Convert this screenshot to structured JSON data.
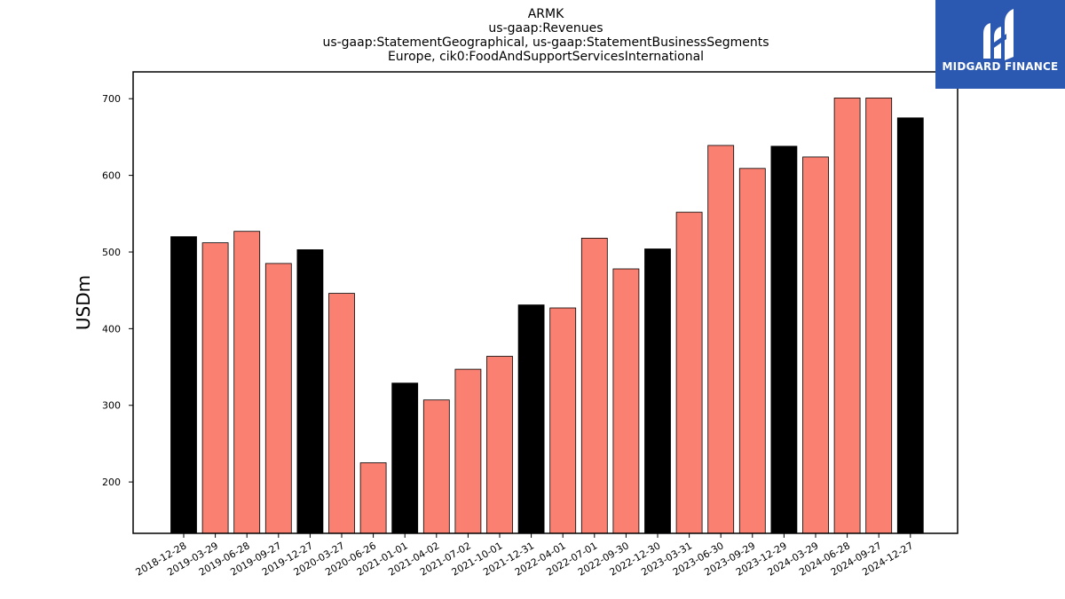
{
  "chart_data": {
    "type": "bar",
    "title_lines": [
      "ARMK",
      "us-gaap:Revenues",
      "us-gaap:StatementGeographical, us-gaap:StatementBusinessSegments",
      "Europe, cik0:FoodAndSupportServicesInternational"
    ],
    "xlabel": "",
    "ylabel": "USDm",
    "ylim": [
      133,
      735
    ],
    "yticks": [
      200,
      300,
      400,
      500,
      600,
      700
    ],
    "grid": false,
    "categories": [
      "2018-12-28",
      "2019-03-29",
      "2019-06-28",
      "2019-09-27",
      "2019-12-27",
      "2020-03-27",
      "2020-06-26",
      "2021-01-01",
      "2021-04-02",
      "2021-07-02",
      "2021-10-01",
      "2021-12-31",
      "2022-04-01",
      "2022-07-01",
      "2022-09-30",
      "2022-12-30",
      "2023-03-31",
      "2023-06-30",
      "2023-09-29",
      "2023-12-29",
      "2024-03-29",
      "2024-06-28",
      "2024-09-27",
      "2024-12-27"
    ],
    "values": [
      520,
      512,
      527,
      485,
      503,
      446,
      225,
      329,
      307,
      347,
      364,
      431,
      427,
      518,
      478,
      504,
      552,
      639,
      609,
      638,
      624,
      701,
      701,
      675
    ],
    "bar_colors": [
      "#000000",
      "#fa8072",
      "#fa8072",
      "#fa8072",
      "#000000",
      "#fa8072",
      "#fa8072",
      "#000000",
      "#fa8072",
      "#fa8072",
      "#fa8072",
      "#000000",
      "#fa8072",
      "#fa8072",
      "#fa8072",
      "#000000",
      "#fa8072",
      "#fa8072",
      "#fa8072",
      "#000000",
      "#fa8072",
      "#fa8072",
      "#fa8072",
      "#000000"
    ]
  },
  "logo": {
    "text": "MIDGARD FINANCE",
    "background": "#2b58b0",
    "icon": "midgard-logo-icon"
  }
}
